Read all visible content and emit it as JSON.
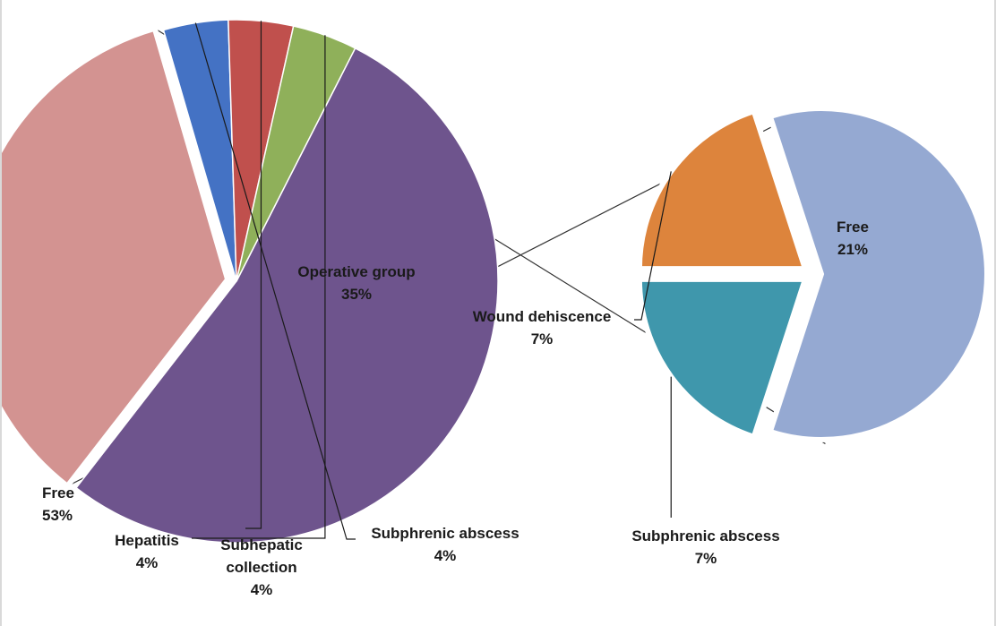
{
  "chart_data": {
    "type": "pie",
    "subtype": "pie-of-pie",
    "main_pie": {
      "slices": [
        {
          "label": "Free",
          "value": 53,
          "value_label": "53%",
          "color": "#6e548d"
        },
        {
          "label": "Operative group",
          "value": 35,
          "value_label": "35%",
          "color": "#d39391",
          "exploded": true
        },
        {
          "label": "Subphrenic abscess",
          "value": 4,
          "value_label": "4%",
          "color": "#4472c4"
        },
        {
          "label": "Subhepatic collection",
          "value": 4,
          "value_label": "4%",
          "color": "#c0504d"
        },
        {
          "label": "Hepatitis",
          "value": 4,
          "value_label": "4%",
          "color": "#8fb05a"
        }
      ]
    },
    "secondary_pie": {
      "slices": [
        {
          "label": "Free",
          "value": 21,
          "value_label": "21%",
          "color": "#95a9d2"
        },
        {
          "label": "Subphrenic abscess",
          "value": 7,
          "value_label": "7%",
          "color": "#3f97ac"
        },
        {
          "label": "Wound dehiscence",
          "value": 7,
          "value_label": "7%",
          "color": "#dd843c"
        }
      ]
    },
    "legend": "none",
    "grid": false
  }
}
